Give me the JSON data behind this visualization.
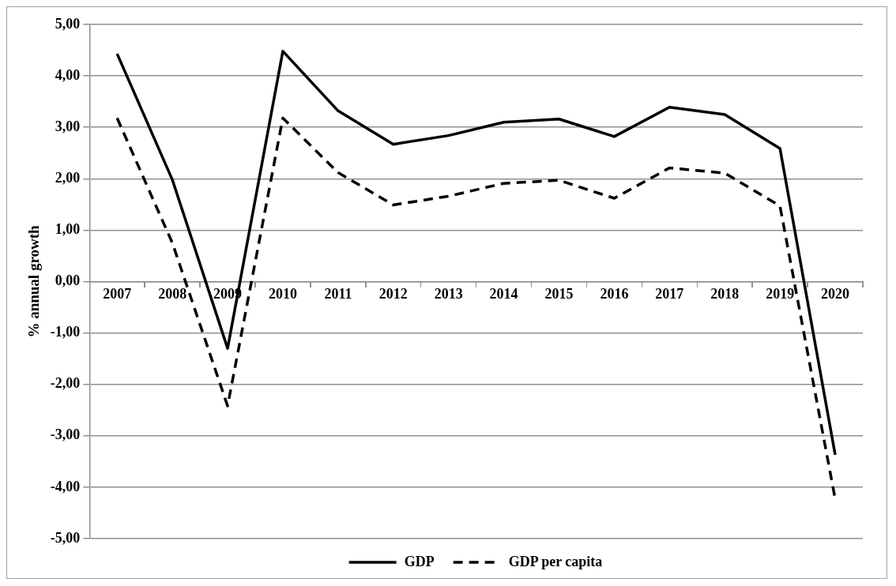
{
  "chart_data": {
    "type": "line",
    "ylabel": "% annual growth",
    "categories": [
      "2007",
      "2008",
      "2009",
      "2010",
      "2011",
      "2012",
      "2013",
      "2014",
      "2015",
      "2016",
      "2017",
      "2018",
      "2019",
      "2020"
    ],
    "series": [
      {
        "name": "GDP",
        "color": "#000000",
        "line_style": "solid",
        "values": [
          4.43,
          1.98,
          -1.3,
          4.48,
          3.32,
          2.67,
          2.84,
          3.1,
          3.16,
          2.82,
          3.39,
          3.25,
          2.59,
          -3.37
        ]
      },
      {
        "name": "GDP per capita",
        "color": "#000000",
        "line_style": "dashed",
        "values": [
          3.18,
          0.75,
          -2.42,
          3.18,
          2.12,
          1.49,
          1.66,
          1.91,
          1.97,
          1.62,
          2.21,
          2.11,
          1.47,
          -4.23
        ]
      }
    ],
    "ylim": [
      -5,
      5
    ],
    "yticks": [
      {
        "value": -5,
        "label": "-5,00"
      },
      {
        "value": -4,
        "label": "-4,00"
      },
      {
        "value": -3,
        "label": "-3,00"
      },
      {
        "value": -2,
        "label": "-2,00"
      },
      {
        "value": -1,
        "label": "-1,00"
      },
      {
        "value": 0,
        "label": "0,00"
      },
      {
        "value": 1,
        "label": "1,00"
      },
      {
        "value": 2,
        "label": "2,00"
      },
      {
        "value": 3,
        "label": "3,00"
      },
      {
        "value": 4,
        "label": "4,00"
      },
      {
        "value": 5,
        "label": "5,00"
      }
    ],
    "grid": "y",
    "legend": "bottom",
    "marker": "none"
  }
}
